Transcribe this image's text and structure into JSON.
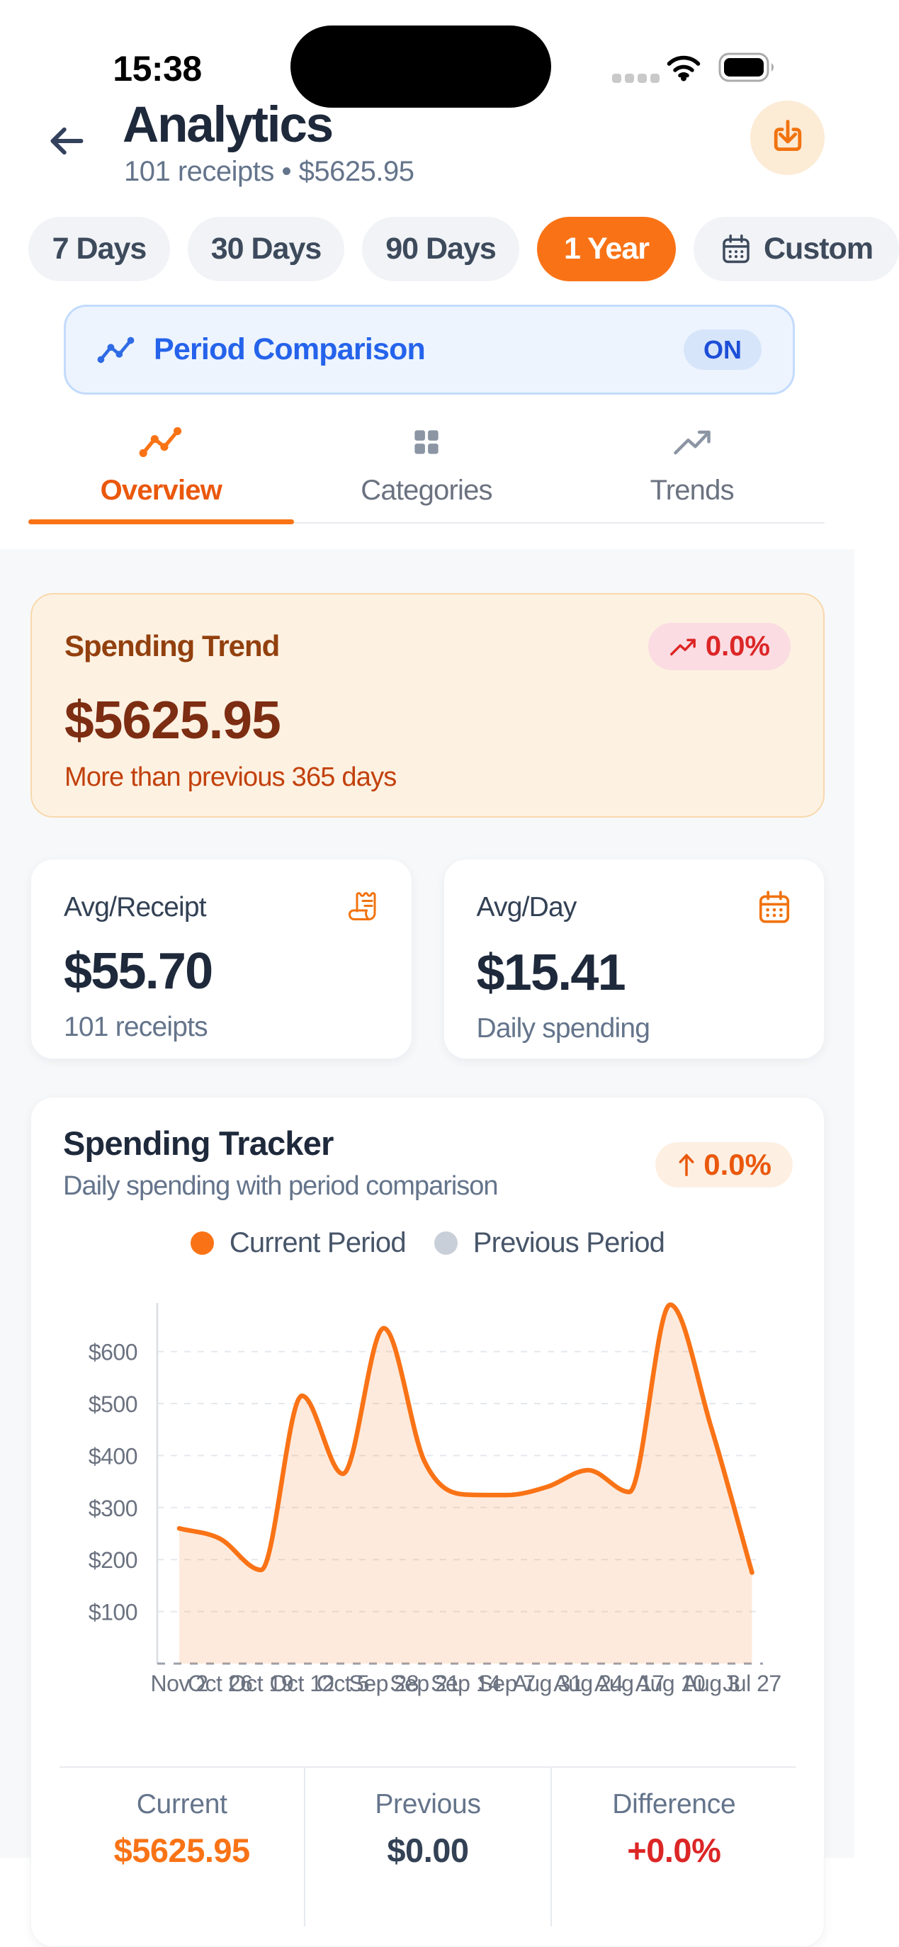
{
  "status_bar": {
    "time": "15:38"
  },
  "header": {
    "title": "Analytics",
    "subtitle": "101 receipts • $5625.95"
  },
  "filters": {
    "chips": [
      {
        "label": "7 Days"
      },
      {
        "label": "30 Days"
      },
      {
        "label": "90 Days"
      },
      {
        "label": "1 Year",
        "active": true
      },
      {
        "label": "Custom",
        "icon": "calendar-icon"
      }
    ]
  },
  "period_comparison": {
    "label": "Period Comparison",
    "state": "ON"
  },
  "tabs": [
    {
      "label": "Overview",
      "icon": "chart-line-icon",
      "active": true
    },
    {
      "label": "Categories",
      "icon": "grid-icon"
    },
    {
      "label": "Trends",
      "icon": "trending-up-icon"
    }
  ],
  "spending_trend": {
    "title": "Spending Trend",
    "badge": "0.0%",
    "amount": "$5625.95",
    "note": "More than previous 365 days"
  },
  "stats": [
    {
      "title": "Avg/Receipt",
      "icon": "receipt-icon",
      "value": "$55.70",
      "subtitle": "101 receipts"
    },
    {
      "title": "Avg/Day",
      "icon": "calendar-icon",
      "value": "$15.41",
      "subtitle": "Daily spending"
    }
  ],
  "tracker": {
    "title": "Spending Tracker",
    "subtitle": "Daily spending with period comparison",
    "badge": "0.0%",
    "legend": [
      {
        "label": "Current Period",
        "color": "#F97316"
      },
      {
        "label": "Previous Period",
        "color": "#C9CFD8"
      }
    ],
    "summary": [
      {
        "label": "Current",
        "value": "$5625.95"
      },
      {
        "label": "Previous",
        "value": "$0.00"
      },
      {
        "label": "Difference",
        "value": "+0.0%"
      }
    ]
  },
  "chart_data": {
    "type": "area",
    "title": "Spending Tracker",
    "x_labels": [
      "Nov 2",
      "Oct 26",
      "Oct 19",
      "Oct 12",
      "Oct 5",
      "Sep 28",
      "Sep 21",
      "Sep 14",
      "Sep 7",
      "Aug 31",
      "Aug 24",
      "Aug 17",
      "Aug 10",
      "Aug 3",
      "Jul 27"
    ],
    "series": [
      {
        "name": "Current Period",
        "color": "#F97316",
        "values": [
          260,
          240,
          180,
          515,
          365,
          645,
          388,
          325,
          324,
          340,
          372,
          330,
          690,
          455,
          175
        ]
      },
      {
        "name": "Previous Period",
        "color": "#9AA2AE",
        "values": [
          0,
          0,
          0,
          0,
          0,
          0,
          0,
          0,
          0,
          0,
          0,
          0,
          0,
          0,
          0
        ]
      }
    ],
    "y_ticks": [
      100,
      200,
      300,
      400,
      500,
      600
    ],
    "y_tick_prefix": "$",
    "ylim": [
      0,
      693
    ],
    "grid": "dashed",
    "legend_position": "top"
  }
}
